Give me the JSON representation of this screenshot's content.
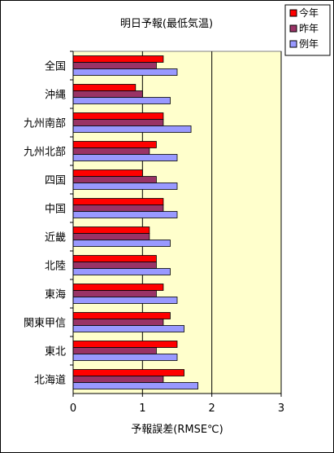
{
  "chart_data": {
    "type": "bar",
    "orientation": "horizontal",
    "title": "明日予報(最低気温)",
    "xlabel": "予報誤差(RMSE℃)",
    "ylabel": "",
    "xlim": [
      0,
      3
    ],
    "xticks": [
      "0",
      "1",
      "2",
      "3"
    ],
    "grid": false,
    "legend_position": "top-right",
    "categories": [
      "全国",
      "沖縄",
      "九州南部",
      "九州北部",
      "四国",
      "中国",
      "近畿",
      "北陸",
      "東海",
      "関東甲信",
      "東北",
      "北海道"
    ],
    "series": [
      {
        "name": "今年",
        "color": "#ff0000",
        "values": [
          1.3,
          0.9,
          1.3,
          1.2,
          1.0,
          1.3,
          1.1,
          1.2,
          1.3,
          1.4,
          1.5,
          1.6
        ]
      },
      {
        "name": "昨年",
        "color": "#993366",
        "values": [
          1.2,
          1.0,
          1.3,
          1.1,
          1.2,
          1.3,
          1.1,
          1.2,
          1.2,
          1.3,
          1.2,
          1.3
        ]
      },
      {
        "name": "例年",
        "color": "#9999ff",
        "values": [
          1.5,
          1.4,
          1.7,
          1.5,
          1.5,
          1.5,
          1.4,
          1.4,
          1.5,
          1.6,
          1.5,
          1.8
        ]
      }
    ],
    "plot_background": "#ffffcc"
  }
}
